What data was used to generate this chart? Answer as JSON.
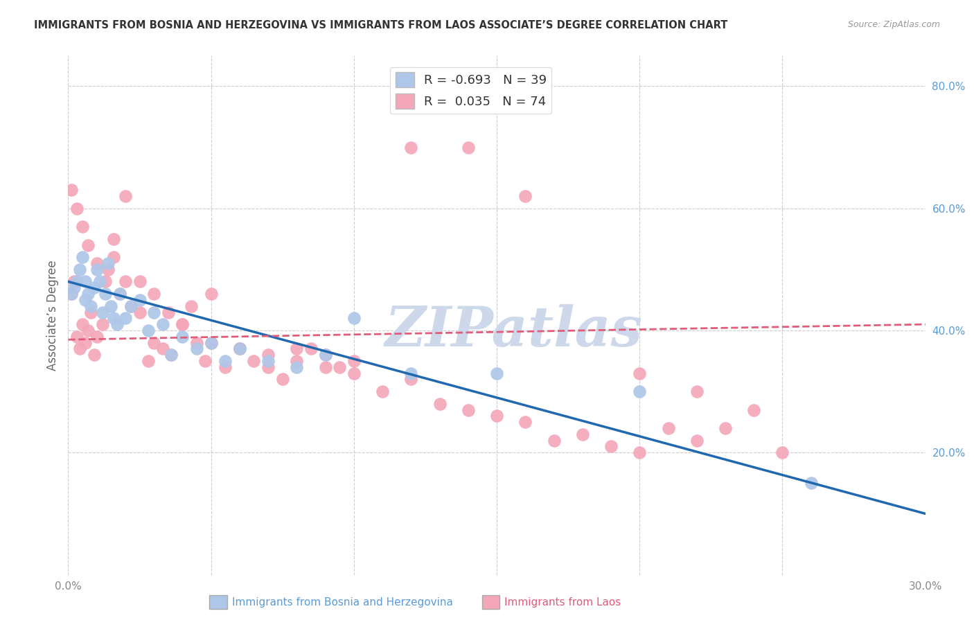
{
  "title": "IMMIGRANTS FROM BOSNIA AND HERZEGOVINA VS IMMIGRANTS FROM LAOS ASSOCIATE’S DEGREE CORRELATION CHART",
  "source": "Source: ZipAtlas.com",
  "ylabel": "Associate’s Degree",
  "x_min": 0.0,
  "x_max": 0.3,
  "y_min": 0.0,
  "y_max": 0.85,
  "bosnia_R": -0.693,
  "bosnia_N": 39,
  "laos_R": 0.035,
  "laos_N": 74,
  "bosnia_color": "#aec6e8",
  "laos_color": "#f4a7b9",
  "bosnia_line_color": "#2068b0",
  "laos_line_color": "#e05c7a",
  "watermark": "ZIPatlas",
  "watermark_color": "#cdd9ea",
  "legend_label_bosnia": "Immigrants from Bosnia and Herzegovina",
  "legend_label_laos": "Immigrants from Laos",
  "bos_line_x0": 0.0,
  "bos_line_y0": 0.48,
  "bos_line_x1": 0.3,
  "bos_line_y1": 0.1,
  "laos_line_x0": 0.0,
  "laos_line_y0": 0.385,
  "laos_line_x1": 0.3,
  "laos_line_y1": 0.41,
  "bosnia_x": [
    0.001,
    0.002,
    0.003,
    0.004,
    0.005,
    0.006,
    0.006,
    0.007,
    0.008,
    0.009,
    0.01,
    0.011,
    0.012,
    0.013,
    0.014,
    0.015,
    0.016,
    0.017,
    0.018,
    0.02,
    0.022,
    0.025,
    0.028,
    0.03,
    0.033,
    0.036,
    0.04,
    0.045,
    0.05,
    0.055,
    0.06,
    0.07,
    0.08,
    0.09,
    0.1,
    0.12,
    0.15,
    0.2,
    0.26
  ],
  "bosnia_y": [
    0.46,
    0.47,
    0.48,
    0.5,
    0.52,
    0.45,
    0.48,
    0.46,
    0.44,
    0.47,
    0.5,
    0.48,
    0.43,
    0.46,
    0.51,
    0.44,
    0.42,
    0.41,
    0.46,
    0.42,
    0.44,
    0.45,
    0.4,
    0.43,
    0.41,
    0.36,
    0.39,
    0.37,
    0.38,
    0.35,
    0.37,
    0.35,
    0.34,
    0.36,
    0.42,
    0.33,
    0.33,
    0.3,
    0.15
  ],
  "laos_x": [
    0.001,
    0.002,
    0.003,
    0.004,
    0.005,
    0.006,
    0.007,
    0.008,
    0.009,
    0.01,
    0.012,
    0.014,
    0.016,
    0.018,
    0.02,
    0.022,
    0.025,
    0.028,
    0.03,
    0.033,
    0.036,
    0.04,
    0.043,
    0.045,
    0.048,
    0.05,
    0.055,
    0.06,
    0.065,
    0.07,
    0.075,
    0.08,
    0.085,
    0.09,
    0.095,
    0.1,
    0.11,
    0.12,
    0.13,
    0.14,
    0.15,
    0.16,
    0.17,
    0.18,
    0.19,
    0.2,
    0.21,
    0.22,
    0.23,
    0.24,
    0.001,
    0.003,
    0.005,
    0.007,
    0.01,
    0.013,
    0.016,
    0.02,
    0.025,
    0.03,
    0.035,
    0.04,
    0.05,
    0.06,
    0.07,
    0.08,
    0.09,
    0.1,
    0.12,
    0.14,
    0.16,
    0.2,
    0.22,
    0.25
  ],
  "laos_y": [
    0.46,
    0.48,
    0.39,
    0.37,
    0.41,
    0.38,
    0.4,
    0.43,
    0.36,
    0.39,
    0.41,
    0.5,
    0.52,
    0.46,
    0.48,
    0.44,
    0.43,
    0.35,
    0.38,
    0.37,
    0.36,
    0.41,
    0.44,
    0.38,
    0.35,
    0.46,
    0.34,
    0.37,
    0.35,
    0.34,
    0.32,
    0.37,
    0.37,
    0.36,
    0.34,
    0.35,
    0.3,
    0.32,
    0.28,
    0.27,
    0.26,
    0.25,
    0.22,
    0.23,
    0.21,
    0.2,
    0.24,
    0.22,
    0.24,
    0.27,
    0.63,
    0.6,
    0.57,
    0.54,
    0.51,
    0.48,
    0.55,
    0.62,
    0.48,
    0.46,
    0.43,
    0.41,
    0.38,
    0.37,
    0.36,
    0.35,
    0.34,
    0.33,
    0.7,
    0.7,
    0.62,
    0.33,
    0.3,
    0.2
  ]
}
